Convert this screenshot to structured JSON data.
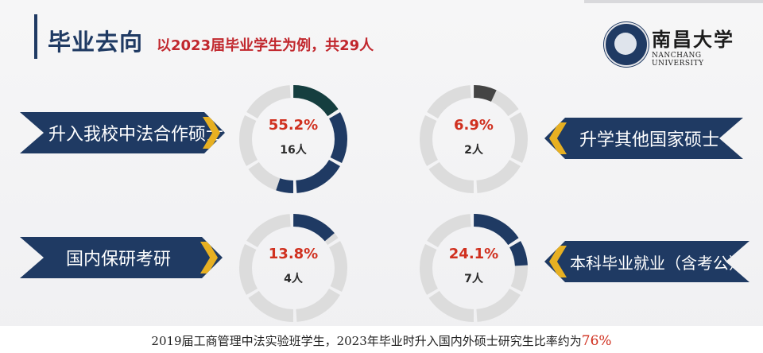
{
  "header": {
    "title": "毕业去向",
    "subtitle": "以2023届毕业学生为例，共29人"
  },
  "logo": {
    "name_cn": "南昌大学",
    "name_en": "NANCHANG UNIVERSITY"
  },
  "categories": [
    {
      "label": "升入我校中法合作硕士",
      "percent_text": "55.2%",
      "count_text": "16人"
    },
    {
      "label": "升学其他国家硕士",
      "percent_text": "6.9%",
      "count_text": "2人"
    },
    {
      "label": "国内保研考研",
      "percent_text": "13.8%",
      "count_text": "4人"
    },
    {
      "label": "本科毕业就业（含考公）",
      "percent_text": "24.1%",
      "count_text": "7人"
    }
  ],
  "chart_data": {
    "type": "pie",
    "categories": [
      "升入我校中法合作硕士",
      "升学其他国家硕士",
      "国内保研考研",
      "本科毕业就业（含考公）"
    ],
    "values": [
      16,
      2,
      4,
      7
    ],
    "percentages": [
      55.2,
      6.9,
      13.8,
      24.1
    ],
    "total": 29
  },
  "colors": {
    "navy": "#1f3a63",
    "dark_teal": "#153e3f",
    "accent_gold": "#e7b022",
    "value_red": "#d0301f",
    "ring_gray": "#dcdcdc",
    "dark_gray": "#444444"
  },
  "footer": {
    "text": "2019届工商管理中法实验班学生，2023年毕业时升入国内外硕士研究生比率约为",
    "highlight": "76%"
  }
}
